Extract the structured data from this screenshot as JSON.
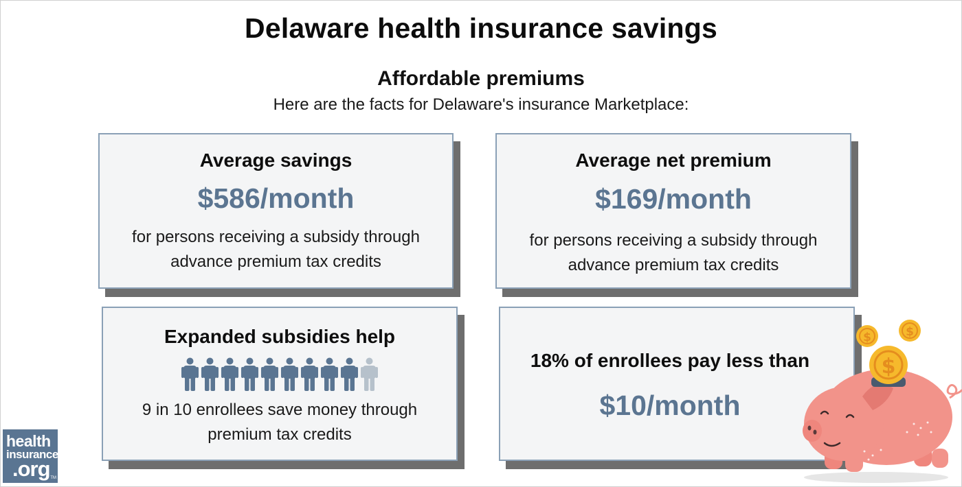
{
  "page": {
    "title": "Delaware health insurance savings",
    "subtitle": "Affordable premiums",
    "intro": "Here are the facts for Delaware's insurance Marketplace:"
  },
  "cards": [
    {
      "title": "Average savings",
      "value": "$586/month",
      "desc_line1": "for persons receiving a subsidy through",
      "desc_line2": "advance premium tax credits"
    },
    {
      "title": "Average net premium",
      "value": "$169/month",
      "desc_line1": "for persons receiving a subsidy through",
      "desc_line2": "advance premium tax credits"
    },
    {
      "title": "Expanded subsidies help",
      "people_total": 10,
      "people_highlighted": 9,
      "desc_line1": "9 in 10 enrollees save money through",
      "desc_line2": "premium tax credits"
    },
    {
      "title": "18% of enrollees pay less than",
      "value": "$10/month"
    }
  ],
  "logo": {
    "line1": "health",
    "line2": "insurance",
    "line3": ".org",
    "tm": "TM"
  },
  "icons": {
    "person": "person-icon",
    "piggy_bank": "piggy-bank-icon",
    "coin": "dollar-coin-icon"
  },
  "colors": {
    "accent": "#5b7591",
    "person_active": "#5a7592",
    "person_inactive": "#b6c1cb",
    "card_border": "#8aa0b6",
    "card_bg": "#f4f5f6",
    "pig": "#f2938a",
    "coin": "#f6b92c"
  }
}
